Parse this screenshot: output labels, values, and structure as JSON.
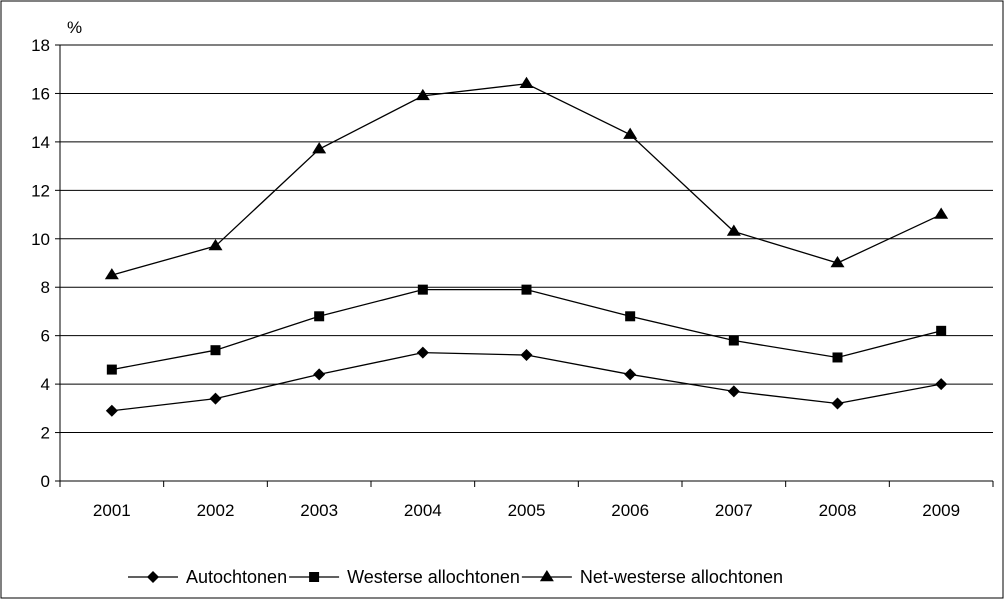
{
  "chart_data": {
    "type": "line",
    "unit_label": "%",
    "categories": [
      "2001",
      "2002",
      "2003",
      "2004",
      "2005",
      "2006",
      "2007",
      "2008",
      "2009"
    ],
    "ylim": [
      0,
      18
    ],
    "yticks": [
      0,
      2,
      4,
      6,
      8,
      10,
      12,
      14,
      16,
      18
    ],
    "grid": true,
    "legend_position": "bottom",
    "series": [
      {
        "name": "Autochtonen",
        "marker": "diamond",
        "values": [
          2.9,
          3.4,
          4.4,
          5.3,
          5.2,
          4.4,
          3.7,
          3.2,
          4.0
        ]
      },
      {
        "name": "Westerse allochtonen",
        "marker": "square",
        "values": [
          4.6,
          5.4,
          6.8,
          7.9,
          7.9,
          6.8,
          5.8,
          5.1,
          6.2
        ]
      },
      {
        "name": "Net-westerse allochtonen",
        "marker": "triangle",
        "values": [
          8.5,
          9.7,
          13.7,
          15.9,
          16.4,
          14.3,
          10.3,
          9.0,
          11.0
        ]
      }
    ]
  }
}
